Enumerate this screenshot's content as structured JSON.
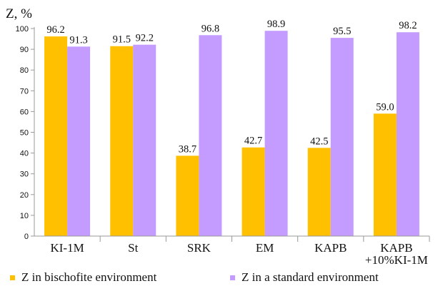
{
  "chart_data": {
    "type": "bar",
    "ylabel": "Z, %",
    "xlabel": "",
    "ylim": [
      0,
      100
    ],
    "yticks": [
      0,
      10,
      20,
      30,
      40,
      50,
      60,
      70,
      80,
      90,
      100
    ],
    "grid": false,
    "legend_position": "bottom",
    "categories": [
      [
        "KI-1M"
      ],
      [
        "St"
      ],
      [
        "SRK"
      ],
      [
        "EM"
      ],
      [
        "KAPB"
      ],
      [
        "KAPB",
        "+10%KI-1M"
      ]
    ],
    "series": [
      {
        "name": "Z in bischofite environment",
        "color": "#FFC000",
        "values": [
          96.2,
          91.5,
          38.7,
          42.7,
          42.5,
          59.0
        ],
        "labels": [
          "96.2",
          "91.5",
          "38.7",
          "42.7",
          "42.5",
          "59.0"
        ]
      },
      {
        "name": "Z in a standard environment",
        "color": "#C49BFF",
        "values": [
          91.3,
          92.2,
          96.8,
          98.9,
          95.5,
          98.2
        ],
        "labels": [
          "91.3",
          "92.2",
          "96.8",
          "98.9",
          "95.5",
          "98.2"
        ]
      }
    ]
  }
}
